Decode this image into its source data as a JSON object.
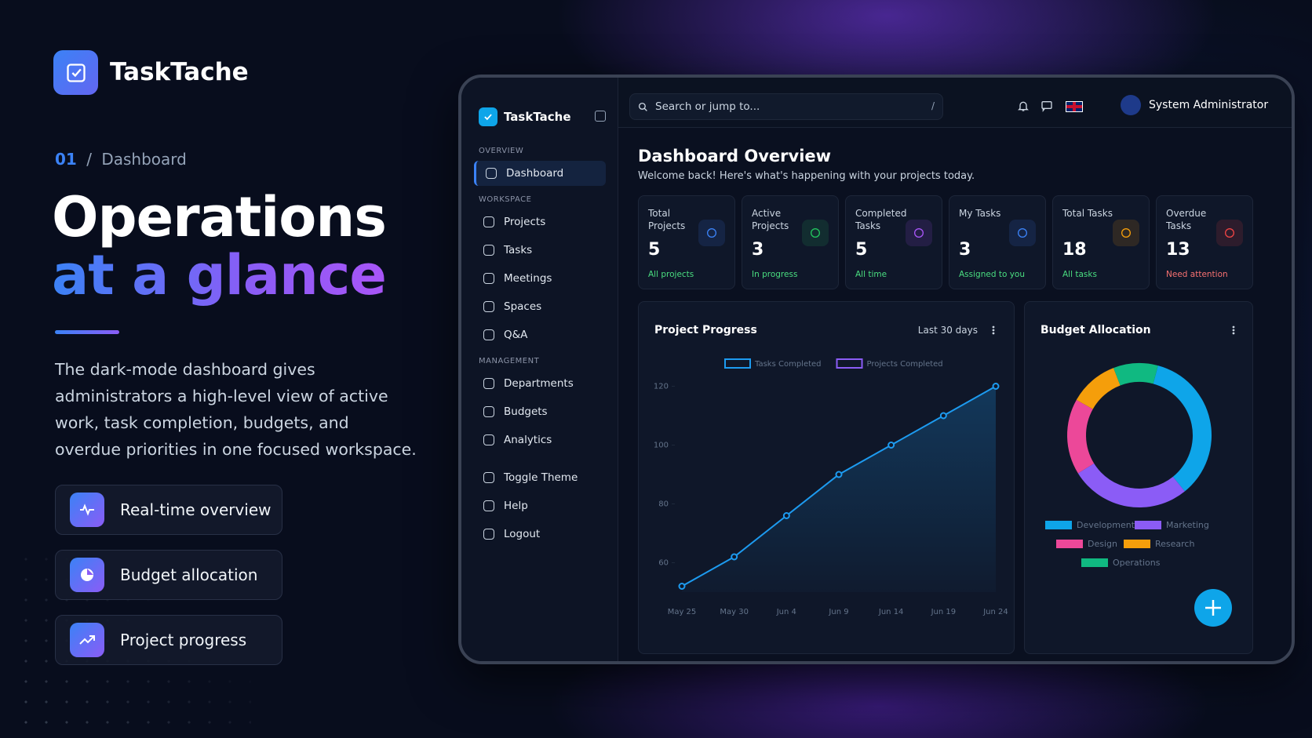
{
  "brand": "TaskTache",
  "breadcrumb": {
    "number": "01",
    "separator": "/",
    "page": "Dashboard"
  },
  "hero": {
    "line1": "Operations",
    "line2": "at a glance",
    "description_lines": [
      "The dark-mode dashboard gives",
      "administrators a high-level view of active",
      "work, task completion, budgets, and",
      "overdue priorities in one focused workspace."
    ]
  },
  "features": [
    "Real-time overview",
    "Budget allocation",
    "Project progress"
  ],
  "dashboard": {
    "brand": "TaskTache",
    "search_placeholder": "Search or jump to...",
    "search_shortcut": "/",
    "user": "System Administrator",
    "sidebar": [
      {
        "heading": "OVERVIEW",
        "items": [
          "Dashboard"
        ]
      },
      {
        "heading": "WORKSPACE",
        "items": [
          "Projects",
          "Tasks",
          "Meetings",
          "Spaces",
          "Q&A"
        ]
      },
      {
        "heading": "MANAGEMENT",
        "items": [
          "Departments",
          "Budgets",
          "Analytics"
        ]
      }
    ],
    "sidebar_footer": [
      "Toggle Theme",
      "Help",
      "Logout"
    ],
    "title": "Dashboard Overview",
    "subtitle": "Welcome back! Here's what's happening with your projects today.",
    "stats": [
      {
        "label": "Total Projects",
        "value": 5,
        "note": "All projects",
        "color": "#3b82f6",
        "note_color": "#4ade80"
      },
      {
        "label": "Active Projects",
        "value": 3,
        "note": "In progress",
        "color": "#22c55e",
        "note_color": "#4ade80"
      },
      {
        "label": "Completed Tasks",
        "value": 5,
        "note": "All time",
        "color": "#a855f7",
        "note_color": "#4ade80"
      },
      {
        "label": "My Tasks",
        "value": 3,
        "note": "Assigned to you",
        "color": "#3b82f6",
        "note_color": "#4ade80"
      },
      {
        "label": "Total Tasks",
        "value": 18,
        "note": "All tasks",
        "color": "#f59e0b",
        "note_color": "#4ade80"
      },
      {
        "label": "Overdue Tasks",
        "value": 13,
        "note": "Need attention",
        "color": "#ef4444",
        "note_color": "#f87171"
      }
    ]
  },
  "chart_data": [
    {
      "type": "line",
      "title": "Project Progress",
      "period": "Last 30 days",
      "categories": [
        "May 25",
        "May 30",
        "Jun 4",
        "Jun 9",
        "Jun 14",
        "Jun 19",
        "Jun 24"
      ],
      "series": [
        {
          "name": "Tasks Completed",
          "color": "#1d9bf0",
          "values": [
            52,
            62,
            76,
            90,
            100,
            110,
            120
          ]
        },
        {
          "name": "Projects Completed",
          "color": "#8b5cf6",
          "values": [
            null,
            null,
            null,
            null,
            null,
            null,
            null
          ]
        }
      ],
      "ylim": [
        50,
        122
      ],
      "yticks": [
        60,
        80,
        100,
        120
      ]
    },
    {
      "type": "pie",
      "title": "Budget Allocation",
      "donut": true,
      "categories": [
        "Development",
        "Marketing",
        "Design",
        "Research",
        "Operations"
      ],
      "values": [
        35,
        27,
        17,
        11,
        10
      ],
      "colors": [
        "#0ea5e9",
        "#8b5cf6",
        "#ec4899",
        "#f59e0b",
        "#10b981"
      ]
    }
  ]
}
